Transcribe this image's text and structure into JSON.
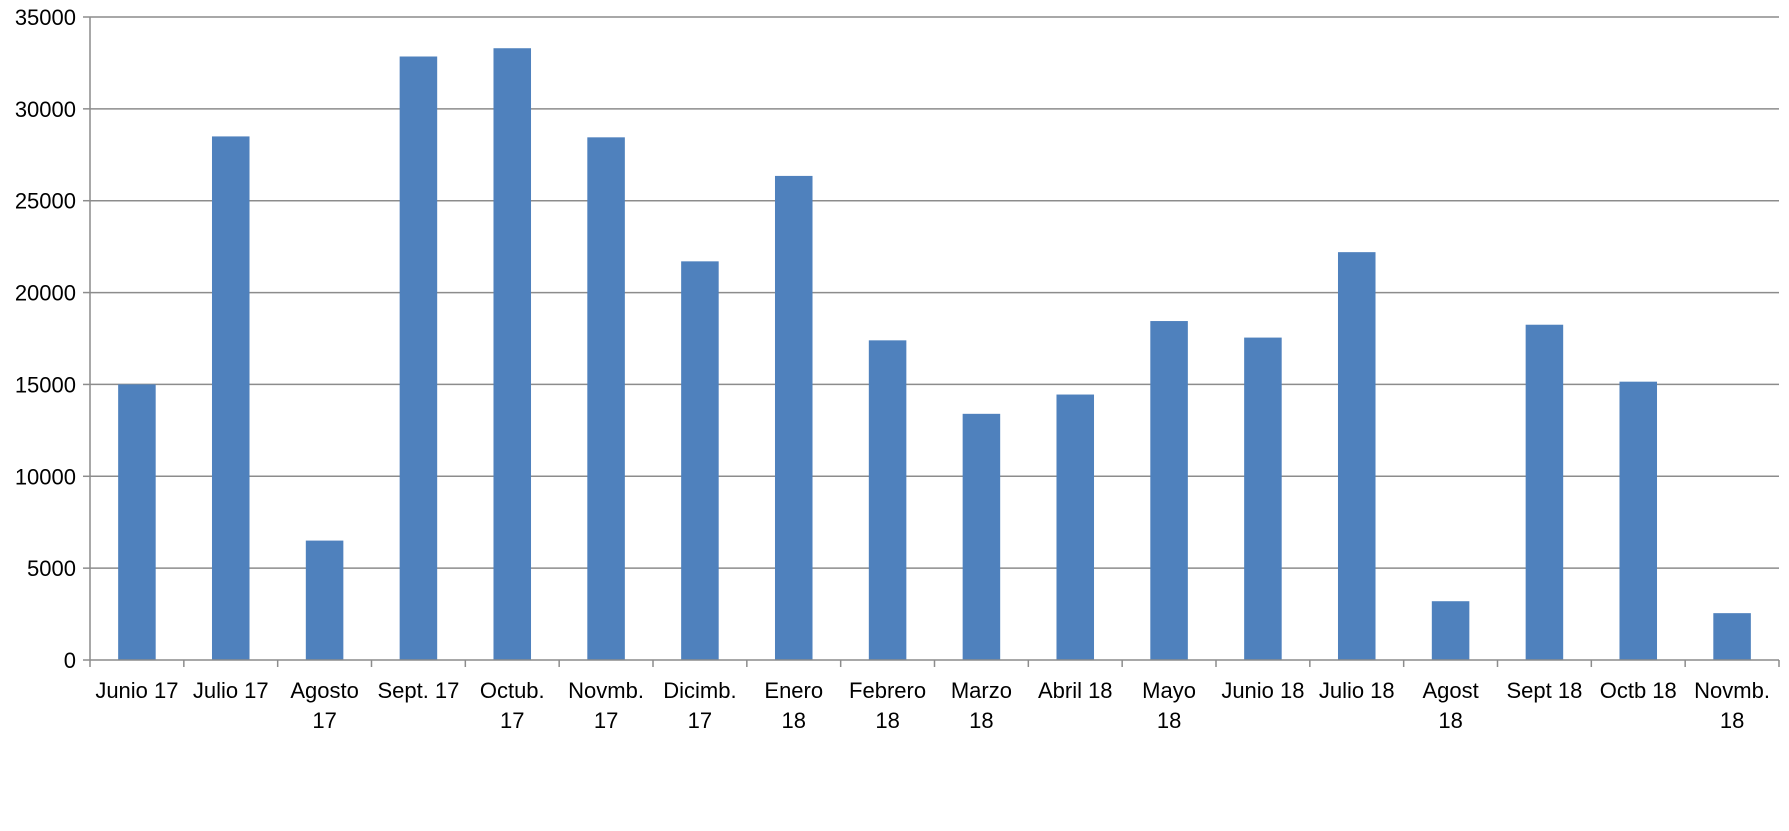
{
  "chart_data": {
    "type": "bar",
    "title": "",
    "xlabel": "",
    "ylabel": "",
    "ylim": [
      0,
      35000
    ],
    "yticks": [
      0,
      5000,
      10000,
      15000,
      20000,
      25000,
      30000,
      35000
    ],
    "grid": true,
    "legend": "none",
    "bar_color": "#4f81bd",
    "categories": [
      [
        "Junio 17"
      ],
      [
        "Julio 17"
      ],
      [
        "Agosto",
        "17"
      ],
      [
        "Sept. 17"
      ],
      [
        "Octub.",
        "17"
      ],
      [
        "Novmb.",
        "17"
      ],
      [
        "Dicimb.",
        "17"
      ],
      [
        "Enero",
        "18"
      ],
      [
        "Febrero",
        "18"
      ],
      [
        "Marzo",
        "18"
      ],
      [
        "Abril 18"
      ],
      [
        "Mayo",
        "18"
      ],
      [
        "Junio 18"
      ],
      [
        "Julio 18"
      ],
      [
        "Agost",
        "18"
      ],
      [
        "Sept 18"
      ],
      [
        "Octb 18"
      ],
      [
        "Novmb.",
        "18"
      ]
    ],
    "values": [
      15000,
      28500,
      6500,
      32850,
      33300,
      28450,
      21700,
      26350,
      17400,
      13400,
      14450,
      18450,
      17550,
      22200,
      3200,
      18250,
      15150,
      2550
    ]
  }
}
